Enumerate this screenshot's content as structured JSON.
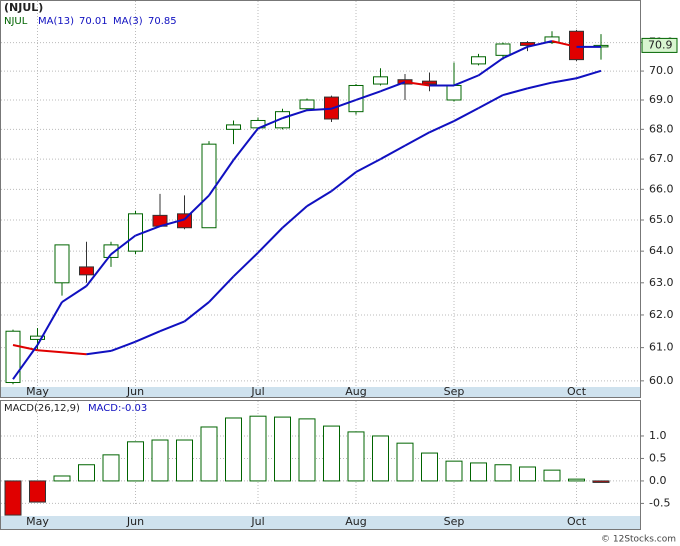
{
  "chart_data": [
    {
      "type": "candlestick",
      "title": "(NJUL)",
      "symbol": "NJUL",
      "log_scale": true,
      "grid": true,
      "up_color": "#006400",
      "down_color": "#e00000",
      "categories": [
        null,
        "May",
        null,
        null,
        null,
        "Jun",
        null,
        null,
        null,
        null,
        "Jul",
        null,
        null,
        null,
        "Aug",
        null,
        null,
        null,
        "Sep",
        null,
        null,
        null,
        null,
        "Oct",
        null
      ],
      "ohlc": {
        "open": [
          59.95,
          61.25,
          63.0,
          63.5,
          63.8,
          64.0,
          65.15,
          65.2,
          64.75,
          68.0,
          68.05,
          68.05,
          68.7,
          69.1,
          68.6,
          69.55,
          69.7,
          69.65,
          69.0,
          70.25,
          70.55,
          71.0,
          71.0,
          71.4,
          70.85
        ],
        "high": [
          61.55,
          61.6,
          64.2,
          64.3,
          64.3,
          65.3,
          65.85,
          65.8,
          67.6,
          68.3,
          68.4,
          68.7,
          69.05,
          69.15,
          69.55,
          70.1,
          69.9,
          69.95,
          70.3,
          70.6,
          71.0,
          71.05,
          71.4,
          71.45,
          71.3
        ],
        "low": [
          59.9,
          60.95,
          62.6,
          63.0,
          63.5,
          63.9,
          64.8,
          64.7,
          64.75,
          67.5,
          68.0,
          68.0,
          68.65,
          68.25,
          68.5,
          69.5,
          69.0,
          69.3,
          68.95,
          70.2,
          70.4,
          70.7,
          70.95,
          70.35,
          70.4
        ],
        "close": [
          61.5,
          61.35,
          64.2,
          63.25,
          64.2,
          65.2,
          64.8,
          64.75,
          67.5,
          68.15,
          68.3,
          68.6,
          69.0,
          68.35,
          69.5,
          69.8,
          69.55,
          69.55,
          69.5,
          70.5,
          70.95,
          70.9,
          71.2,
          70.4,
          70.9
        ]
      },
      "series": [
        {
          "name": "MA(13)",
          "color": "#1010c0",
          "down_color": "#e00000",
          "values": [
            61.08,
            60.92,
            60.86,
            60.8,
            60.9,
            61.18,
            61.5,
            61.8,
            62.4,
            63.2,
            63.95,
            64.75,
            65.45,
            65.94,
            66.57,
            67.0,
            67.45,
            67.9,
            68.28,
            68.72,
            69.17,
            69.4,
            69.6,
            69.75,
            70.01
          ]
        },
        {
          "name": "MA(3)",
          "color": "#1010c0",
          "down_color": "#e00000",
          "values": [
            60.05,
            61.08,
            62.4,
            62.9,
            63.9,
            64.5,
            64.8,
            65.02,
            65.8,
            66.97,
            68.03,
            68.38,
            68.65,
            68.7,
            69.0,
            69.3,
            69.62,
            69.5,
            69.5,
            69.85,
            70.45,
            70.85,
            71.05,
            70.85,
            70.85
          ]
        }
      ],
      "ylim": [
        59.49,
        72.52
      ],
      "yticks": [
        {
          "value": 60,
          "label": "60.0"
        },
        {
          "value": 61,
          "label": "61.0"
        },
        {
          "value": 62,
          "label": "62.0"
        },
        {
          "value": 63,
          "label": "63.0"
        },
        {
          "value": 64,
          "label": "64.0"
        },
        {
          "value": 65,
          "label": "65.0"
        },
        {
          "value": 66,
          "label": "66.0"
        },
        {
          "value": 67,
          "label": "67.0"
        },
        {
          "value": 68,
          "label": "68.0"
        },
        {
          "value": 69,
          "label": "69.0"
        },
        {
          "value": 70,
          "label": "70.0"
        },
        {
          "value": 71,
          "label": "71.0"
        }
      ]
    },
    {
      "type": "bar",
      "title": "MACD(26,12,9)",
      "value_label": "MACD:-0.03",
      "grid": true,
      "up_color": "#006400",
      "down_color": "#e00000",
      "categories": [
        null,
        "May",
        null,
        null,
        null,
        "Jun",
        null,
        null,
        null,
        null,
        "Jul",
        null,
        null,
        null,
        "Aug",
        null,
        null,
        null,
        "Sep",
        null,
        null,
        null,
        null,
        "Oct",
        null
      ],
      "values": [
        -0.76,
        -0.47,
        0.11,
        0.36,
        0.58,
        0.87,
        0.91,
        0.91,
        1.2,
        1.4,
        1.44,
        1.42,
        1.38,
        1.22,
        1.09,
        1.0,
        0.84,
        0.62,
        0.44,
        0.4,
        0.36,
        0.31,
        0.24,
        0.04,
        -0.03
      ],
      "ylim": [
        -0.78,
        1.8
      ],
      "yticks": [
        {
          "value": -0.5,
          "label": "-0.5"
        },
        {
          "value": 0,
          "label": "0.0"
        },
        {
          "value": 0.5,
          "label": "0.5"
        },
        {
          "value": 1,
          "label": "1.0"
        }
      ]
    }
  ],
  "footer": "© 12Stocks.com"
}
